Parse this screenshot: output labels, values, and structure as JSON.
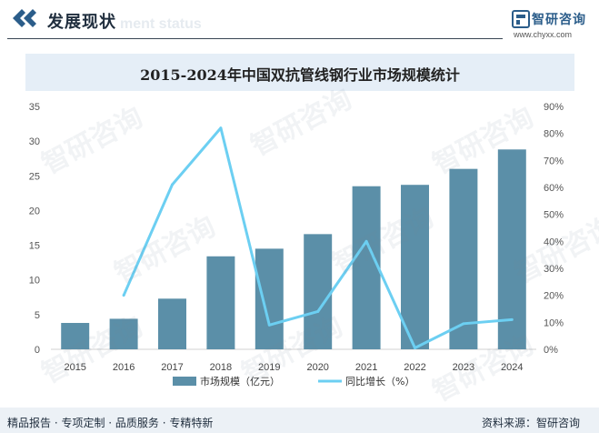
{
  "header": {
    "title": "发展现状",
    "subtitle": "ment status",
    "brand_name": "智研咨询",
    "brand_url": "www.chyxx.com"
  },
  "watermark_text": "智研咨询",
  "chart_data": {
    "type": "bar+line",
    "title": "2015-2024年中国双抗管线钢行业市场规模统计",
    "categories": [
      "2015",
      "2016",
      "2017",
      "2018",
      "2019",
      "2020",
      "2021",
      "2022",
      "2023",
      "2024"
    ],
    "series": [
      {
        "name": "市场规模（亿元）",
        "type": "bar",
        "axis": "left",
        "color": "#5b8fa8",
        "values": [
          3.8,
          4.4,
          7.3,
          13.4,
          14.5,
          16.6,
          23.5,
          23.7,
          26.0,
          28.8
        ]
      },
      {
        "name": "同比增长（%）",
        "type": "line",
        "axis": "right",
        "color": "#6ccff2",
        "values": [
          null,
          20,
          61,
          82,
          9,
          14,
          40,
          0.5,
          9.5,
          11
        ]
      }
    ],
    "y_left": {
      "min": 0,
      "max": 35,
      "ticks": [
        "0",
        "5",
        "10",
        "15",
        "20",
        "25",
        "30",
        "35"
      ]
    },
    "y_right": {
      "min": 0,
      "max": 90,
      "ticks": [
        "0%",
        "10%",
        "20%",
        "30%",
        "40%",
        "50%",
        "60%",
        "70%",
        "80%",
        "90%"
      ]
    },
    "grid": false,
    "legend": "bottom-center"
  },
  "footer": {
    "left": "精品报告 · 专项定制 · 品质服务 · 专精特新",
    "right": "资料来源：智研咨询"
  }
}
